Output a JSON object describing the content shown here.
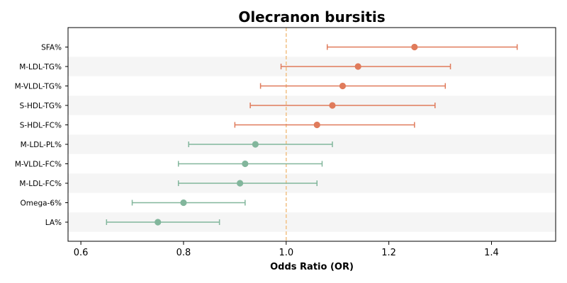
{
  "chart_data": {
    "type": "forest",
    "title": "Olecranon bursitis",
    "xlabel": "Odds Ratio (OR)",
    "ylabel": "",
    "xlim": [
      0.575,
      1.525
    ],
    "xticks": [
      0.6,
      0.8,
      1.0,
      1.2,
      1.4
    ],
    "xtick_labels": [
      "0.6",
      "0.8",
      "1.0",
      "1.2",
      "1.4"
    ],
    "reference_line": 1.0,
    "grid": false,
    "alternating_row_shading": true,
    "colors": {
      "above_one": "#e07b5b",
      "below_one": "#82b69c",
      "reference_line": "#f2c48b",
      "row_shade": "#f5f5f5"
    },
    "rows": [
      {
        "label": "SFA%",
        "or": 1.25,
        "lower": 1.08,
        "upper": 1.45
      },
      {
        "label": "M-LDL-TG%",
        "or": 1.14,
        "lower": 0.99,
        "upper": 1.32
      },
      {
        "label": "M-VLDL-TG%",
        "or": 1.11,
        "lower": 0.95,
        "upper": 1.31
      },
      {
        "label": "S-HDL-TG%",
        "or": 1.09,
        "lower": 0.93,
        "upper": 1.29
      },
      {
        "label": "S-HDL-FC%",
        "or": 1.06,
        "lower": 0.9,
        "upper": 1.25
      },
      {
        "label": "M-LDL-PL%",
        "or": 0.94,
        "lower": 0.81,
        "upper": 1.09
      },
      {
        "label": "M-VLDL-FC%",
        "or": 0.92,
        "lower": 0.79,
        "upper": 1.07
      },
      {
        "label": "M-LDL-FC%",
        "or": 0.91,
        "lower": 0.79,
        "upper": 1.06
      },
      {
        "label": "Omega-6%",
        "or": 0.8,
        "lower": 0.7,
        "upper": 0.92
      },
      {
        "label": "LA%",
        "or": 0.75,
        "lower": 0.65,
        "upper": 0.87
      }
    ]
  }
}
